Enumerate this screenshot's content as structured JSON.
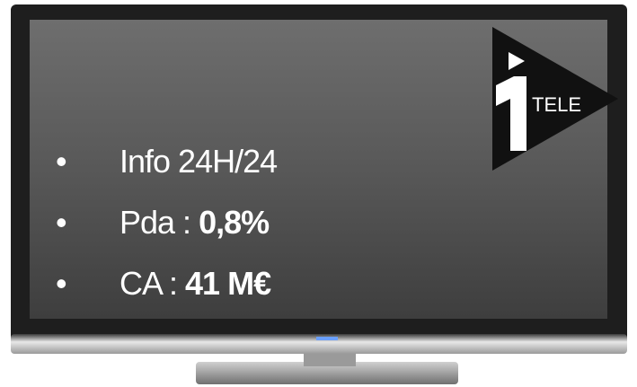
{
  "logo": {
    "text": "TELE"
  },
  "bullets": [
    {
      "label": "Info 24H/24"
    },
    {
      "label": "Pda : ",
      "value": "0,8%"
    },
    {
      "label": "CA : ",
      "value": "41 M€"
    }
  ]
}
